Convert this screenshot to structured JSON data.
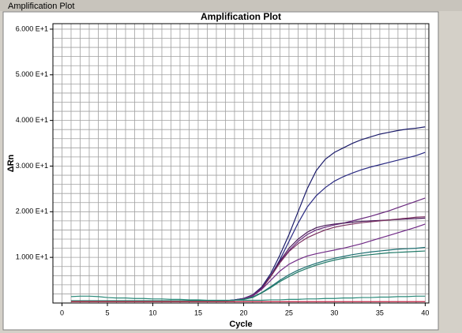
{
  "window_title": "Amplification Plot",
  "chart_data": {
    "type": "line",
    "title": "Amplification Plot",
    "x_label": "Cycle",
    "y_label": "ΔRn",
    "xlim": [
      -1,
      40.4
    ],
    "ylim": [
      0,
      61.2
    ],
    "xticks": [
      0,
      5,
      10,
      15,
      20,
      25,
      30,
      35,
      40
    ],
    "yticks": [
      {
        "value": 10,
        "label": "1.000 E+1"
      },
      {
        "value": 20,
        "label": "2.000 E+1"
      },
      {
        "value": 30,
        "label": "3.000 E+1"
      },
      {
        "value": 40,
        "label": "4.000 E+1"
      },
      {
        "value": 50,
        "label": "5.000 E+1"
      },
      {
        "value": 60,
        "label": "6.000 E+1"
      }
    ],
    "grid": true,
    "grid_step": {
      "x": 1,
      "y": 2
    },
    "x": [
      1,
      2,
      3,
      4,
      5,
      6,
      7,
      8,
      9,
      10,
      11,
      12,
      13,
      14,
      15,
      16,
      17,
      18,
      19,
      20,
      21,
      22,
      23,
      24,
      25,
      26,
      27,
      28,
      29,
      30,
      31,
      32,
      33,
      34,
      35,
      36,
      37,
      38,
      39,
      40
    ],
    "series": [
      {
        "color": "#1c1c6a",
        "values": [
          0.5,
          0.5,
          0.5,
          0.5,
          0.5,
          0.5,
          0.5,
          0.5,
          0.5,
          0.5,
          0.5,
          0.5,
          0.5,
          0.5,
          0.5,
          0.5,
          0.5,
          0.5,
          0.7,
          1.0,
          1.8,
          3.5,
          6.5,
          10.5,
          15,
          20,
          25,
          29,
          31.5,
          33,
          34,
          35,
          35.8,
          36.4,
          37,
          37.4,
          37.8,
          38.1,
          38.3,
          38.6
        ]
      },
      {
        "color": "#2a2a82",
        "values": [
          0.5,
          0.5,
          0.5,
          0.5,
          0.5,
          0.5,
          0.5,
          0.5,
          0.5,
          0.5,
          0.5,
          0.5,
          0.5,
          0.5,
          0.5,
          0.5,
          0.5,
          0.5,
          0.7,
          1.0,
          1.7,
          3.3,
          6,
          9.5,
          13.5,
          17.5,
          21,
          23.5,
          25.3,
          26.7,
          27.7,
          28.5,
          29.2,
          29.8,
          30.3,
          30.8,
          31.3,
          31.8,
          32.3,
          33
        ]
      },
      {
        "color": "#6a2a7e",
        "values": [
          0.5,
          0.5,
          0.5,
          0.5,
          0.5,
          0.5,
          0.5,
          0.5,
          0.5,
          0.5,
          0.5,
          0.5,
          0.5,
          0.5,
          0.5,
          0.5,
          0.5,
          0.5,
          0.6,
          1.0,
          1.7,
          3.3,
          6,
          9,
          11.5,
          13.5,
          15,
          16,
          16.6,
          17.1,
          17.5,
          18,
          18.5,
          19,
          19.6,
          20.2,
          20.9,
          21.6,
          22.3,
          23
        ]
      },
      {
        "color": "#4a1a5a",
        "values": [
          0.5,
          0.5,
          0.5,
          0.5,
          0.5,
          0.5,
          0.5,
          0.5,
          0.5,
          0.5,
          0.5,
          0.5,
          0.5,
          0.5,
          0.5,
          0.5,
          0.5,
          0.5,
          0.6,
          0.9,
          1.6,
          3.2,
          6,
          9.2,
          12,
          14,
          15.5,
          16.5,
          17,
          17.3,
          17.5,
          17.7,
          17.9,
          18,
          18.1,
          18.2,
          18.3,
          18.4,
          18.5,
          18.6
        ]
      },
      {
        "color": "#7a3060",
        "values": [
          0.5,
          0.5,
          0.5,
          0.5,
          0.5,
          0.5,
          0.5,
          0.5,
          0.5,
          0.5,
          0.5,
          0.5,
          0.5,
          0.5,
          0.5,
          0.5,
          0.5,
          0.5,
          0.6,
          0.9,
          1.6,
          3.1,
          5.8,
          8.8,
          11.3,
          13,
          14.3,
          15.2,
          16,
          16.6,
          17,
          17.3,
          17.6,
          17.8,
          18,
          18.2,
          18.4,
          18.6,
          18.8,
          18.9
        ]
      },
      {
        "color": "#702a86",
        "values": [
          0.5,
          0.5,
          0.5,
          0.5,
          0.5,
          0.5,
          0.5,
          0.5,
          0.5,
          0.5,
          0.5,
          0.5,
          0.5,
          0.5,
          0.5,
          0.5,
          0.5,
          0.5,
          0.6,
          0.9,
          1.5,
          3,
          5,
          7,
          8.5,
          9.5,
          10.3,
          10.8,
          11.2,
          11.6,
          12,
          12.5,
          13,
          13.6,
          14.2,
          14.8,
          15.4,
          16,
          16.6,
          17.3
        ]
      },
      {
        "color": "#1a6e70",
        "values": [
          0.5,
          0.5,
          0.5,
          0.5,
          0.5,
          0.5,
          0.5,
          0.5,
          0.5,
          0.5,
          0.5,
          0.5,
          0.5,
          0.5,
          0.5,
          0.5,
          0.5,
          0.5,
          0.6,
          0.8,
          1.3,
          2.3,
          3.6,
          5,
          6.2,
          7.2,
          8,
          8.7,
          9.3,
          9.8,
          10.2,
          10.6,
          10.9,
          11.2,
          11.4,
          11.6,
          11.8,
          11.9,
          12,
          12.2
        ]
      },
      {
        "color": "#207a68",
        "values": [
          0.5,
          0.5,
          0.5,
          0.5,
          0.5,
          0.5,
          0.5,
          0.5,
          0.5,
          0.5,
          0.5,
          0.5,
          0.5,
          0.5,
          0.5,
          0.5,
          0.5,
          0.5,
          0.6,
          0.8,
          1.2,
          2.2,
          3.4,
          4.7,
          5.8,
          6.8,
          7.6,
          8.3,
          8.9,
          9.4,
          9.8,
          10.1,
          10.4,
          10.6,
          10.8,
          11,
          11.1,
          11.2,
          11.3,
          11.4
        ]
      },
      {
        "color": "#2a8a7a",
        "values": [
          1.4,
          1.5,
          1.5,
          1.4,
          1.2,
          1.1,
          1.1,
          1.0,
          1.0,
          0.9,
          0.9,
          0.8,
          0.8,
          0.7,
          0.7,
          0.6,
          0.6,
          0.6,
          0.6,
          0.6,
          0.6,
          0.6,
          0.7,
          0.7,
          0.8,
          0.8,
          0.9,
          0.9,
          1.0,
          1.0,
          1.1,
          1.1,
          1.2,
          1.2,
          1.3,
          1.3,
          1.4,
          1.4,
          1.5,
          1.5
        ]
      },
      {
        "color": "#c02040",
        "values": [
          0.3,
          0.3,
          0.3,
          0.3,
          0.3,
          0.3,
          0.3,
          0.3,
          0.3,
          0.3,
          0.3,
          0.3,
          0.3,
          0.3,
          0.3,
          0.3,
          0.3,
          0.3,
          0.3,
          0.3,
          0.3,
          0.3,
          0.3,
          0.3,
          0.3,
          0.3,
          0.3,
          0.3,
          0.3,
          0.3,
          0.3,
          0.3,
          0.3,
          0.3,
          0.3,
          0.3,
          0.3,
          0.3,
          0.3,
          0.3
        ]
      }
    ]
  }
}
